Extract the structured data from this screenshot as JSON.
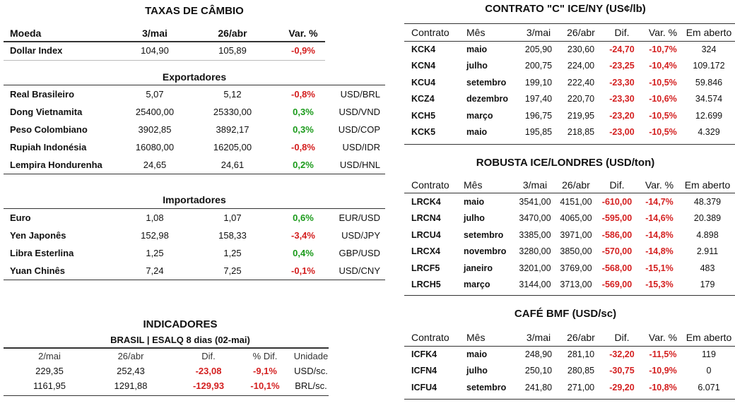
{
  "fx": {
    "title": "TAXAS DE CÂMBIO",
    "headers": [
      "Moeda",
      "3/mai",
      "26/abr",
      "Var. %"
    ],
    "dollar_index": {
      "name": "Dollar Index",
      "v1": "104,90",
      "v2": "105,89",
      "var": "-0,9%"
    },
    "exporters_title": "Exportadores",
    "exporters": [
      {
        "name": "Real Brasileiro",
        "v1": "5,07",
        "v2": "5,12",
        "var": "-0,8%",
        "pair": "USD/BRL"
      },
      {
        "name": "Dong Vietnamita",
        "v1": "25400,00",
        "v2": "25330,00",
        "var": "0,3%",
        "pair": "USD/VND"
      },
      {
        "name": "Peso Colombiano",
        "v1": "3902,85",
        "v2": "3892,17",
        "var": "0,3%",
        "pair": "USD/COP"
      },
      {
        "name": "Rupiah Indonésia",
        "v1": "16080,00",
        "v2": "16205,00",
        "var": "-0,8%",
        "pair": "USD/IDR"
      },
      {
        "name": "Lempira Hondurenha",
        "v1": "24,65",
        "v2": "24,61",
        "var": "0,2%",
        "pair": "USD/HNL"
      }
    ],
    "importers_title": "Importadores",
    "importers": [
      {
        "name": "Euro",
        "v1": "1,08",
        "v2": "1,07",
        "var": "0,6%",
        "pair": "EUR/USD"
      },
      {
        "name": "Yen Japonês",
        "v1": "152,98",
        "v2": "158,33",
        "var": "-3,4%",
        "pair": "USD/JPY"
      },
      {
        "name": "Libra Esterlina",
        "v1": "1,25",
        "v2": "1,25",
        "var": "0,4%",
        "pair": "GBP/USD"
      },
      {
        "name": "Yuan Chinês",
        "v1": "7,24",
        "v2": "7,25",
        "var": "-0,1%",
        "pair": "USD/CNY"
      }
    ]
  },
  "indicators": {
    "title": "INDICADORES",
    "subtitle": "BRASIL | ESALQ 8 dias (02-mai)",
    "headers": [
      "2/mai",
      "26/abr",
      "Dif.",
      "% Dif.",
      "Unidade"
    ],
    "rows": [
      {
        "v1": "229,35",
        "v2": "252,43",
        "dif": "-23,08",
        "pdif": "-9,1%",
        "unit": "USD/sc."
      },
      {
        "v1": "1161,95",
        "v2": "1291,88",
        "dif": "-129,93",
        "pdif": "-10,1%",
        "unit": "BRL/sc."
      }
    ]
  },
  "ny": {
    "title": "CONTRATO \"C\" ICE/NY (US¢/lb)",
    "headers": [
      "Contrato",
      "Mês",
      "3/mai",
      "26/abr",
      "Dif.",
      "Var. %",
      "Em aberto"
    ],
    "rows": [
      {
        "c": "KCK4",
        "m": "maio",
        "v1": "205,90",
        "v2": "230,60",
        "d": "-24,70",
        "p": "-10,7%",
        "o": "324"
      },
      {
        "c": "KCN4",
        "m": "julho",
        "v1": "200,75",
        "v2": "224,00",
        "d": "-23,25",
        "p": "-10,4%",
        "o": "109.172"
      },
      {
        "c": "KCU4",
        "m": "setembro",
        "v1": "199,10",
        "v2": "222,40",
        "d": "-23,30",
        "p": "-10,5%",
        "o": "59.846"
      },
      {
        "c": "KCZ4",
        "m": "dezembro",
        "v1": "197,40",
        "v2": "220,70",
        "d": "-23,30",
        "p": "-10,6%",
        "o": "34.574"
      },
      {
        "c": "KCH5",
        "m": "março",
        "v1": "196,75",
        "v2": "219,95",
        "d": "-23,20",
        "p": "-10,5%",
        "o": "12.699"
      },
      {
        "c": "KCK5",
        "m": "maio",
        "v1": "195,85",
        "v2": "218,85",
        "d": "-23,00",
        "p": "-10,5%",
        "o": "4.329"
      }
    ]
  },
  "london": {
    "title": "ROBUSTA ICE/LONDRES (USD/ton)",
    "headers": [
      "Contrato",
      "Mês",
      "3/mai",
      "26/abr",
      "Dif.",
      "Var. %",
      "Em aberto"
    ],
    "rows": [
      {
        "c": "LRCK4",
        "m": "maio",
        "v1": "3541,00",
        "v2": "4151,00",
        "d": "-610,00",
        "p": "-14,7%",
        "o": "48.379"
      },
      {
        "c": "LRCN4",
        "m": "julho",
        "v1": "3470,00",
        "v2": "4065,00",
        "d": "-595,00",
        "p": "-14,6%",
        "o": "20.389"
      },
      {
        "c": "LRCU4",
        "m": "setembro",
        "v1": "3385,00",
        "v2": "3971,00",
        "d": "-586,00",
        "p": "-14,8%",
        "o": "4.898"
      },
      {
        "c": "LRCX4",
        "m": "novembro",
        "v1": "3280,00",
        "v2": "3850,00",
        "d": "-570,00",
        "p": "-14,8%",
        "o": "2.911"
      },
      {
        "c": "LRCF5",
        "m": "janeiro",
        "v1": "3201,00",
        "v2": "3769,00",
        "d": "-568,00",
        "p": "-15,1%",
        "o": "483"
      },
      {
        "c": "LRCH5",
        "m": "março",
        "v1": "3144,00",
        "v2": "3713,00",
        "d": "-569,00",
        "p": "-15,3%",
        "o": "179"
      }
    ]
  },
  "bmf": {
    "title": "CAFÉ BMF (USD/sc)",
    "headers": [
      "Contrato",
      "Mês",
      "3/mai",
      "26/abr",
      "Dif.",
      "Var. %",
      "Em aberto"
    ],
    "rows": [
      {
        "c": "ICFK4",
        "m": "maio",
        "v1": "248,90",
        "v2": "281,10",
        "d": "-32,20",
        "p": "-11,5%",
        "o": "119"
      },
      {
        "c": "ICFN4",
        "m": "julho",
        "v1": "250,10",
        "v2": "280,85",
        "d": "-30,75",
        "p": "-10,9%",
        "o": "0"
      },
      {
        "c": "ICFU4",
        "m": "setembro",
        "v1": "241,80",
        "v2": "271,00",
        "d": "-29,20",
        "p": "-10,8%",
        "o": "6.071"
      }
    ]
  }
}
